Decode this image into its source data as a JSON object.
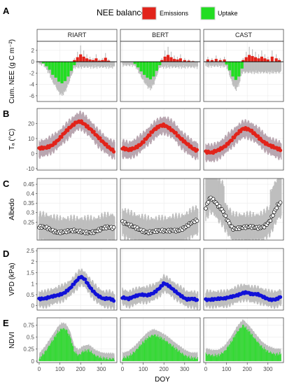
{
  "legend": {
    "title": "NEE balance",
    "items": [
      {
        "label": "Emissions",
        "color": "#e2231a"
      },
      {
        "label": "Uptake",
        "color": "#22dd22"
      }
    ]
  },
  "x_axis": {
    "label": "DOY",
    "ticks": [
      0,
      100,
      200,
      300
    ],
    "range": [
      -10,
      375
    ]
  },
  "colors": {
    "band": "#bebebe",
    "band_red": "#f28cb1",
    "grid": "#ebebeb",
    "frame": "#333333",
    "blue": "#1010d8",
    "red": "#e2231a",
    "green": "#22dd22"
  },
  "chart_data": [
    {
      "panel": "A",
      "type": "bar",
      "ylabel": "Cum. NEE (g C m⁻²)",
      "yticks": [
        -6,
        -4,
        -2,
        0,
        2
      ],
      "ylim": [
        -7,
        3.6
      ],
      "sites": [
        {
          "name": "RIART",
          "series": [
            {
              "name": "Emissions",
              "x": [
                170,
                185,
                200,
                215,
                230,
                245,
                260,
                275,
                290,
                305,
                320,
                335
              ],
              "values": [
                0.3,
                0.8,
                1.3,
                0.9,
                0.6,
                0.4,
                0.3,
                0.6,
                0.2,
                0.3,
                0.7,
                0.2
              ]
            },
            {
              "name": "Uptake",
              "x": [
                20,
                35,
                50,
                65,
                80,
                95,
                110,
                125,
                140,
                155,
                170
              ],
              "values": [
                -0.3,
                -0.8,
                -1.4,
                -2.3,
                -2.8,
                -3.5,
                -3.8,
                -3.4,
                -2.6,
                -1.6,
                -0.6
              ]
            }
          ]
        },
        {
          "name": "BERT",
          "series": [
            {
              "name": "Emissions",
              "x": [
                190,
                205,
                220,
                235,
                250,
                265,
                280,
                300,
                320,
                340
              ],
              "values": [
                0.3,
                0.9,
                1.2,
                0.8,
                0.5,
                0.4,
                0.6,
                0.3,
                0.2,
                0.1
              ]
            },
            {
              "name": "Uptake",
              "x": [
                60,
                75,
                90,
                105,
                120,
                135,
                150,
                165,
                180
              ],
              "values": [
                -0.4,
                -1.0,
                -1.7,
                -2.3,
                -2.8,
                -3.1,
                -2.6,
                -1.6,
                -0.6
              ]
            }
          ]
        },
        {
          "name": "CAST",
          "series": [
            {
              "name": "Emissions",
              "x": [
                10,
                30,
                50,
                70,
                90,
                180,
                195,
                210,
                225,
                240,
                255,
                270,
                285,
                300,
                320,
                340,
                355
              ],
              "values": [
                0.4,
                0.3,
                0.5,
                0.3,
                0.4,
                0.3,
                0.8,
                1.2,
                1.0,
                0.8,
                0.6,
                0.9,
                0.6,
                0.4,
                0.9,
                0.6,
                0.3
              ]
            },
            {
              "name": "Uptake",
              "x": [
                100,
                115,
                130,
                145,
                160,
                175
              ],
              "values": [
                -0.5,
                -1.5,
                -2.6,
                -3.2,
                -2.6,
                -1.2
              ]
            }
          ]
        }
      ]
    },
    {
      "panel": "B",
      "type": "scatter",
      "ylabel": "Tₐ (°C)",
      "yticks": [
        -10,
        0,
        10,
        20
      ],
      "ylim": [
        -11,
        30
      ],
      "marker_color": "#e2231a",
      "sites": [
        {
          "name": "RIART",
          "x": [
            0,
            30,
            60,
            90,
            120,
            150,
            180,
            200,
            220,
            250,
            280,
            310,
            340,
            365
          ],
          "y": [
            3,
            4,
            6,
            9,
            13,
            17,
            21,
            22,
            20,
            16,
            11,
            7,
            4,
            2
          ]
        },
        {
          "name": "BERT",
          "x": [
            0,
            30,
            60,
            90,
            120,
            150,
            180,
            200,
            220,
            250,
            280,
            310,
            340,
            365
          ],
          "y": [
            3,
            2,
            4,
            7,
            11,
            15,
            18,
            19,
            18,
            15,
            10,
            6,
            3,
            2
          ]
        },
        {
          "name": "CAST",
          "x": [
            0,
            30,
            60,
            90,
            120,
            150,
            180,
            200,
            220,
            250,
            280,
            310,
            340,
            365
          ],
          "y": [
            1,
            0,
            2,
            5,
            9,
            13,
            16,
            16,
            15,
            12,
            8,
            5,
            3,
            2
          ]
        }
      ]
    },
    {
      "panel": "C",
      "type": "scatter",
      "ylabel": "Albedo",
      "yticks": [
        0.25,
        0.3,
        0.35,
        0.4,
        0.45
      ],
      "ylim": [
        0.155,
        0.48
      ],
      "marker_color": "#ffffff",
      "sites": [
        {
          "name": "RIART",
          "x": [
            0,
            30,
            60,
            90,
            120,
            150,
            180,
            210,
            240,
            270,
            300,
            330,
            365
          ],
          "y": [
            0.22,
            0.22,
            0.21,
            0.2,
            0.2,
            0.2,
            0.2,
            0.2,
            0.2,
            0.2,
            0.21,
            0.22,
            0.22
          ]
        },
        {
          "name": "BERT",
          "x": [
            0,
            30,
            60,
            90,
            120,
            150,
            180,
            210,
            240,
            270,
            300,
            330,
            365
          ],
          "y": [
            0.25,
            0.23,
            0.22,
            0.21,
            0.2,
            0.2,
            0.2,
            0.2,
            0.21,
            0.21,
            0.22,
            0.24,
            0.26
          ]
        },
        {
          "name": "CAST",
          "x": [
            0,
            20,
            40,
            60,
            80,
            100,
            130,
            160,
            190,
            220,
            250,
            280,
            310,
            330,
            350,
            365
          ],
          "y": [
            0.33,
            0.38,
            0.36,
            0.33,
            0.31,
            0.27,
            0.22,
            0.22,
            0.22,
            0.22,
            0.22,
            0.23,
            0.26,
            0.3,
            0.34,
            0.35
          ]
        }
      ]
    },
    {
      "panel": "D",
      "type": "scatter",
      "ylabel": "VPD (kPa)",
      "yticks": [
        0.0,
        0.5,
        1.0,
        1.5,
        2.0,
        2.5
      ],
      "ylim": [
        -0.2,
        2.6
      ],
      "marker_color": "#1010d8",
      "sites": [
        {
          "name": "RIART",
          "x": [
            0,
            30,
            60,
            90,
            120,
            150,
            180,
            200,
            220,
            250,
            280,
            310,
            340,
            365
          ],
          "y": [
            0.3,
            0.3,
            0.4,
            0.5,
            0.6,
            0.8,
            1.1,
            1.3,
            1.2,
            0.8,
            0.5,
            0.3,
            0.3,
            0.2
          ]
        },
        {
          "name": "BERT",
          "x": [
            0,
            30,
            60,
            90,
            120,
            150,
            180,
            200,
            220,
            250,
            280,
            310,
            340,
            365
          ],
          "y": [
            0.4,
            0.3,
            0.4,
            0.5,
            0.5,
            0.6,
            0.8,
            1.0,
            0.9,
            0.7,
            0.5,
            0.3,
            0.3,
            0.2
          ]
        },
        {
          "name": "CAST",
          "x": [
            0,
            30,
            60,
            90,
            120,
            150,
            180,
            200,
            220,
            250,
            280,
            310,
            340,
            365
          ],
          "y": [
            0.3,
            0.3,
            0.3,
            0.3,
            0.4,
            0.5,
            0.6,
            0.6,
            0.5,
            0.5,
            0.4,
            0.3,
            0.3,
            0.4
          ]
        }
      ]
    },
    {
      "panel": "E",
      "type": "area",
      "ylabel": "NDVI",
      "yticks": [
        0.0,
        0.25,
        0.5,
        0.75
      ],
      "ylim": [
        -0.03,
        0.9
      ],
      "sites": [
        {
          "name": "RIART",
          "x": [
            0,
            30,
            60,
            90,
            110,
            130,
            150,
            170,
            190,
            210,
            240,
            270,
            300,
            330,
            365
          ],
          "y": [
            0.05,
            0.2,
            0.4,
            0.6,
            0.68,
            0.66,
            0.5,
            0.2,
            0.12,
            0.2,
            0.23,
            0.12,
            0.07,
            0.05,
            0.05
          ]
        },
        {
          "name": "BERT",
          "x": [
            0,
            30,
            60,
            90,
            120,
            150,
            180,
            210,
            240,
            270,
            300,
            330,
            365
          ],
          "y": [
            0.06,
            0.1,
            0.2,
            0.35,
            0.48,
            0.55,
            0.5,
            0.42,
            0.32,
            0.22,
            0.12,
            0.07,
            0.06
          ]
        },
        {
          "name": "CAST",
          "x": [
            0,
            30,
            60,
            90,
            120,
            150,
            180,
            210,
            240,
            270,
            300,
            330,
            365
          ],
          "y": [
            0.15,
            0.12,
            0.12,
            0.2,
            0.38,
            0.6,
            0.75,
            0.62,
            0.45,
            0.3,
            0.2,
            0.15,
            0.15
          ]
        }
      ]
    }
  ]
}
